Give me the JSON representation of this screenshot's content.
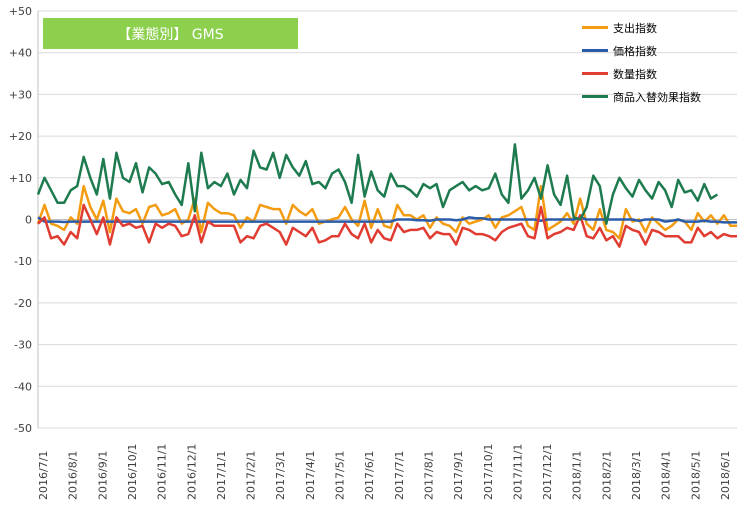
{
  "chart_data": {
    "type": "line",
    "title": "【業態別】 GMS",
    "ylim": [
      -50,
      50
    ],
    "yticks": [
      "+50",
      "+40",
      "+30",
      "+20",
      "+10",
      "0",
      "-10",
      "-20",
      "-30",
      "-40",
      "-50"
    ],
    "ytick_values": [
      50,
      40,
      30,
      20,
      10,
      0,
      -10,
      -20,
      -30,
      -40,
      -50
    ],
    "xtick_labels": [
      "2016/7/1",
      "2016/8/1",
      "2016/9/1",
      "2016/10/1",
      "2016/11/1",
      "2016/12/1",
      "2017/1/1",
      "2017/2/1",
      "2017/3/1",
      "2017/4/1",
      "2017/5/1",
      "2017/6/1",
      "2017/7/1",
      "2017/8/1",
      "2017/9/1",
      "2017/10/1",
      "2017/11/1",
      "2017/12/1",
      "2018/1/1",
      "2018/2/1",
      "2018/3/1",
      "2018/4/1",
      "2018/5/1",
      "2018/6/1"
    ],
    "grid": true,
    "legend_position": "top-right",
    "series": [
      {
        "name": "支出指数",
        "color": "#f39c12",
        "values": [
          -1,
          3.5,
          -1,
          -1.5,
          -2.5,
          0.5,
          -1,
          8,
          3,
          0,
          4.5,
          -3,
          5,
          2,
          1.5,
          2.5,
          -1,
          3,
          3.5,
          1,
          1.5,
          2.5,
          -1,
          0,
          5,
          -3,
          4,
          2.5,
          1.5,
          1.5,
          1,
          -2,
          0.5,
          -0.5,
          3.5,
          3,
          2.5,
          2.5,
          -1,
          3.5,
          2,
          1,
          2.5,
          -1,
          -0.5,
          0,
          0.5,
          3,
          0,
          -1.5,
          4.5,
          -2,
          2.5,
          -1.5,
          -2,
          3.5,
          1,
          1,
          0,
          1,
          -2,
          0.5,
          -1,
          -1.5,
          -3,
          0.5,
          -1,
          -0.5,
          0,
          1,
          -2,
          0.5,
          1,
          2,
          3,
          -1.5,
          -2.5,
          8,
          -2.5,
          -1.5,
          -0.5,
          1.5,
          -1,
          5,
          -1,
          -2.5,
          2.5,
          -2.5,
          -3,
          -4.5,
          2.5,
          -0.5,
          0,
          -3,
          0.5,
          -1,
          -2.5,
          -1.5,
          0,
          -0.5,
          -2.5,
          1.5,
          -0.5,
          1,
          -1,
          1,
          -1.5,
          -1.5
        ]
      },
      {
        "name": "価格指数",
        "color": "#2a5caa",
        "values": [
          0.5,
          -0.5,
          -0.5,
          -0.5,
          -0.6,
          -0.5,
          -0.5,
          -0.5,
          -0.5,
          -0.5,
          -0.5,
          -0.5,
          -0.5,
          -0.5,
          -0.5,
          -0.5,
          -0.5,
          -0.5,
          -0.5,
          -0.5,
          -0.5,
          -0.5,
          -0.5,
          -0.5,
          -0.5,
          -0.5,
          -0.5,
          -0.5,
          -0.5,
          -0.5,
          -0.5,
          -0.5,
          -0.5,
          -0.5,
          -0.5,
          -0.5,
          -0.5,
          -0.5,
          -0.5,
          -0.5,
          -0.5,
          -0.5,
          -0.5,
          -0.5,
          -0.5,
          -0.5,
          -0.5,
          -0.5,
          -0.5,
          -0.5,
          -0.5,
          -0.5,
          -0.5,
          -0.5,
          -0.5,
          0,
          0,
          0,
          -0.2,
          -0.2,
          -0.3,
          0,
          0,
          0,
          -0.2,
          0,
          0.5,
          0.3,
          0.3,
          0,
          0,
          0,
          0,
          0,
          0,
          0,
          0,
          -0.3,
          0,
          0,
          0,
          0,
          0,
          0.5,
          0,
          0,
          0,
          0,
          0,
          0,
          0,
          0,
          -0.3,
          0,
          0,
          0,
          -0.5,
          -0.3,
          0,
          -0.5,
          -0.5,
          -0.5,
          -0.3,
          -0.5,
          -0.5,
          -0.7,
          -0.7,
          -0.7
        ]
      },
      {
        "name": "数量指数",
        "color": "#e03c31",
        "values": [
          -1,
          0.5,
          -4.5,
          -4,
          -6,
          -3,
          -4.5,
          3.5,
          0,
          -3.5,
          0.5,
          -6,
          0.5,
          -1.5,
          -1,
          -2,
          -1.5,
          -5.5,
          -1,
          -2,
          -1,
          -1.5,
          -4,
          -3.5,
          1,
          -5.5,
          -0.5,
          -1.5,
          -1.5,
          -1.5,
          -1.5,
          -5.5,
          -4,
          -4.5,
          -1.5,
          -1,
          -2,
          -3,
          -6,
          -2,
          -3,
          -4,
          -2,
          -5.5,
          -5,
          -4,
          -4,
          -1,
          -3.5,
          -4.5,
          -1,
          -5.5,
          -2.5,
          -4.5,
          -5,
          -1,
          -3,
          -2.5,
          -2.5,
          -2,
          -4.5,
          -3,
          -3.5,
          -3.5,
          -6,
          -2,
          -2.5,
          -3.5,
          -3.5,
          -4,
          -5,
          -3,
          -2,
          -1.5,
          -1,
          -4,
          -4.5,
          3,
          -4.5,
          -3.5,
          -3,
          -2,
          -2.5,
          1,
          -4,
          -4.5,
          -2,
          -5,
          -4,
          -6.5,
          -1.5,
          -2.5,
          -3,
          -6,
          -2.5,
          -3,
          -4,
          -4,
          -4,
          -5.5,
          -5.5,
          -2,
          -4,
          -3,
          -4.5,
          -3.5,
          -4,
          -4
        ]
      },
      {
        "name": "商品入替効果指数",
        "color": "#1e7b4f",
        "values": [
          6,
          10,
          7,
          4,
          4,
          7,
          8,
          15,
          10,
          6,
          14.5,
          5,
          16,
          10,
          9,
          13.5,
          6.5,
          12.5,
          11,
          8.5,
          9,
          6,
          3.5,
          13.5,
          2,
          16,
          7.5,
          9,
          8,
          11,
          6,
          9.5,
          7.5,
          16.5,
          12.5,
          12,
          16,
          10,
          15.5,
          12.5,
          10.5,
          14,
          8.5,
          9,
          7.5,
          11,
          12,
          9,
          4,
          15.5,
          5.5,
          11.5,
          7,
          5.5,
          11,
          8,
          8,
          7,
          5.5,
          8.5,
          7.5,
          8.5,
          3,
          7,
          8,
          9,
          7,
          8,
          7,
          7.5,
          11,
          6,
          4,
          18,
          5,
          7,
          10,
          5,
          13,
          6,
          3.5,
          10.5,
          0.5,
          0,
          3,
          10.5,
          8,
          -1,
          6,
          10,
          7.5,
          5.5,
          9.5,
          7,
          5,
          9,
          7,
          3,
          9.5,
          6.5,
          7,
          4.5,
          8.5,
          5,
          6
        ]
      }
    ]
  }
}
